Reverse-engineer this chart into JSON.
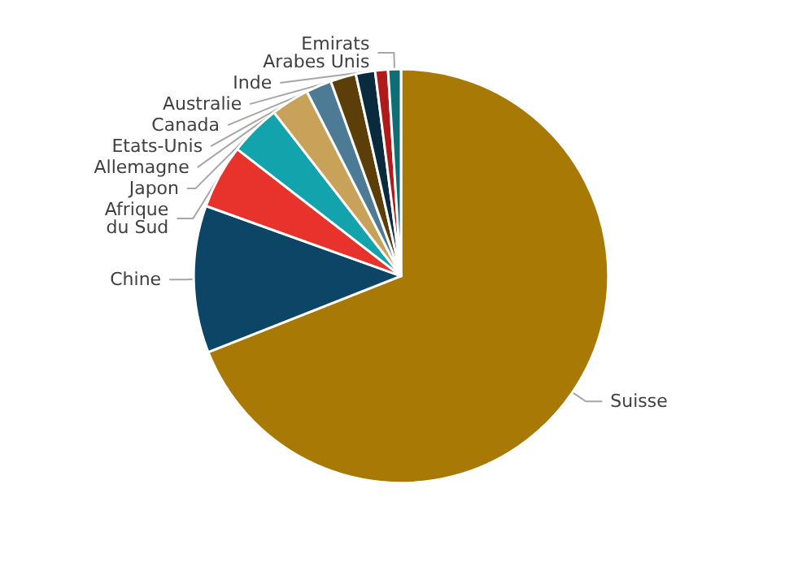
{
  "chart_data": {
    "type": "pie",
    "categories": [
      "Suisse",
      "Chine",
      "Afrique du Sud",
      "Japon",
      "Allemagne",
      "Etats-Unis",
      "Canada",
      "Australie",
      "Inde",
      "Emirats Arabes Unis"
    ],
    "values": [
      69,
      11.5,
      5,
      4,
      3,
      2,
      2,
      1.5,
      1,
      1
    ],
    "colors": [
      "#a87904",
      "#0d4566",
      "#e8322c",
      "#12a3ad",
      "#c9a25a",
      "#4d7a94",
      "#5c3e08",
      "#0a2a3d",
      "#b01a1a",
      "#0e6e73"
    ],
    "legend": false
  }
}
